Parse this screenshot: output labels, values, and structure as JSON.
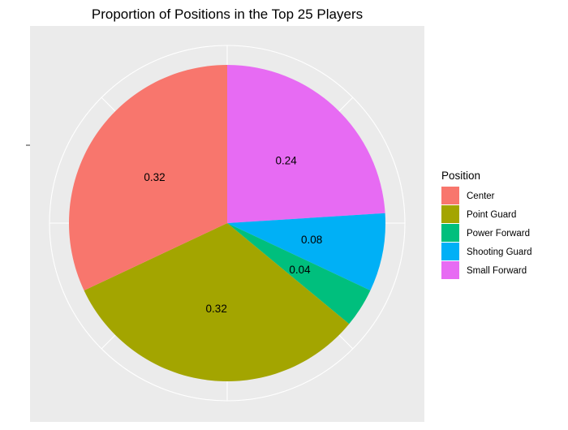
{
  "chart_data": {
    "type": "pie",
    "title": "Proportion of Positions in the Top 25 Players",
    "legend_title": "Position",
    "legend_position": "right",
    "coord": "polar",
    "grid": true,
    "background": "#EBEBEB",
    "categories": [
      "Center",
      "Point Guard",
      "Power Forward",
      "Shooting Guard",
      "Small Forward"
    ],
    "values": [
      0.32,
      0.32,
      0.04,
      0.08,
      0.24
    ],
    "labels": [
      "0.32",
      "0.32",
      "0.04",
      "0.08",
      "0.24"
    ],
    "colors": [
      "#F8766D",
      "#A3A500",
      "#00BF7D",
      "#00B0F6",
      "#E76BF3"
    ]
  }
}
